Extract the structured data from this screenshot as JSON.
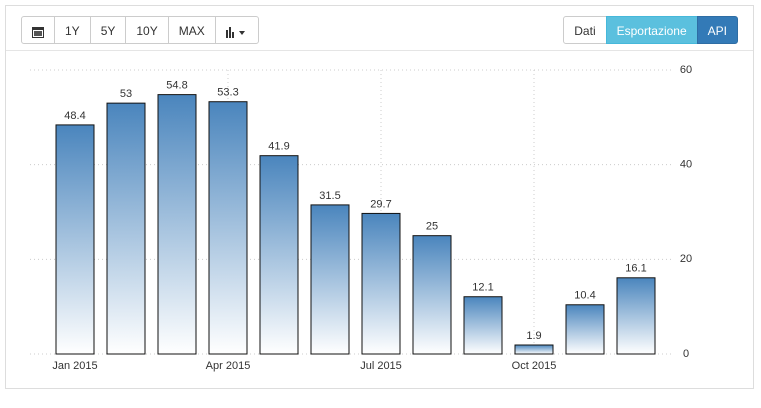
{
  "toolbar": {
    "ranges": [
      "1Y",
      "5Y",
      "10Y",
      "MAX"
    ],
    "actions": [
      "Dati",
      "Esportazione",
      "API"
    ]
  },
  "chart_data": {
    "type": "bar",
    "categories": [
      "Jan 2015",
      null,
      null,
      "Apr 2015",
      null,
      null,
      "Jul 2015",
      null,
      null,
      "Oct 2015",
      null,
      null
    ],
    "values": [
      48.4,
      53,
      54.8,
      53.3,
      41.9,
      31.5,
      29.7,
      25,
      12.1,
      1.9,
      10.4,
      16.1
    ],
    "color": "#4a85bd",
    "ylim": [
      0,
      60
    ],
    "yticks": [
      0,
      20,
      40,
      60
    ],
    "grid": true
  }
}
